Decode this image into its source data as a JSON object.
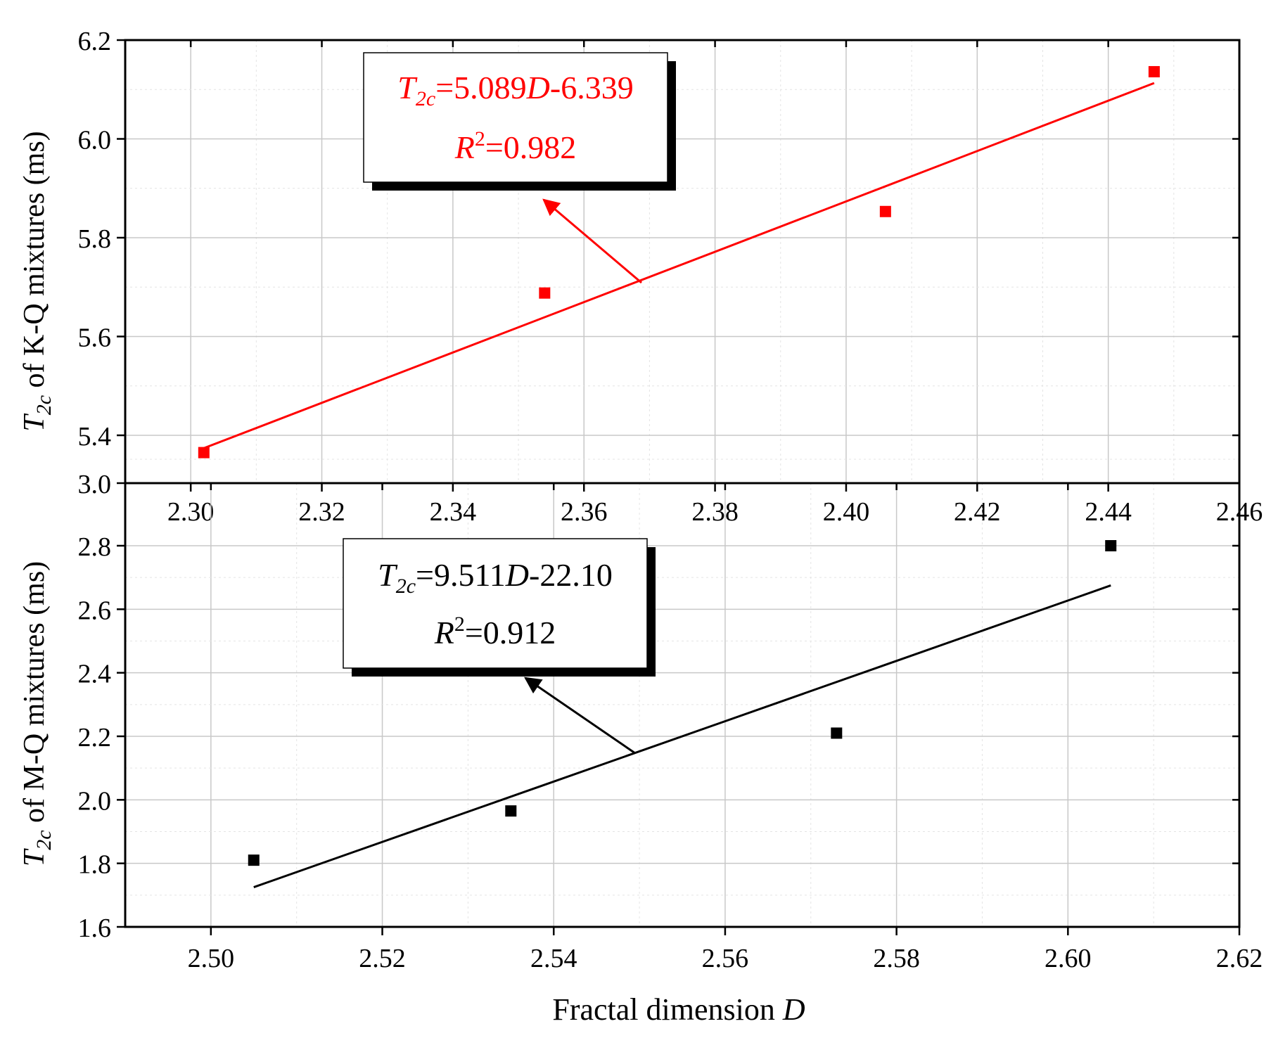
{
  "chart_data": [
    {
      "type": "scatter",
      "panel": "top",
      "ylabel": {
        "sym": "T",
        "sub": "2c",
        "rest": " of K-Q mixtures (ms)"
      },
      "xlim": [
        2.29,
        2.46
      ],
      "ylim": [
        5.3,
        6.2
      ],
      "y_axis_break": {
        "display_bottom_label": "3.0"
      },
      "xticks": [
        "2.30",
        "2.32",
        "2.34",
        "2.36",
        "2.38",
        "2.40",
        "2.42",
        "2.44",
        "2.46"
      ],
      "yticks": [
        "5.4",
        "5.6",
        "5.8",
        "6.0",
        "6.2"
      ],
      "grid": true,
      "color": "#ff0000",
      "points": [
        {
          "x": 2.302,
          "y": 5.365
        },
        {
          "x": 2.354,
          "y": 5.688
        },
        {
          "x": 2.406,
          "y": 5.853
        },
        {
          "x": 2.447,
          "y": 6.136
        }
      ],
      "fit": {
        "x": [
          2.302,
          2.447
        ],
        "y": [
          5.374,
          6.113
        ]
      },
      "annotation": {
        "eq_sym": "T",
        "eq_sub": "2c",
        "eq_a": "=5.089",
        "eq_var": "D",
        "eq_b": "-6.339",
        "r2_sym": "R",
        "r2_sup": "2",
        "r2_val": "=0.982"
      }
    },
    {
      "type": "scatter",
      "panel": "bottom",
      "ylabel": {
        "sym": "T",
        "sub": "2c",
        "rest": " of M-Q mixtures (ms)"
      },
      "xlabel": {
        "text": "Fractal dimension ",
        "var": "D"
      },
      "xlim": [
        2.49,
        2.62
      ],
      "ylim": [
        1.6,
        2.95
      ],
      "xticks": [
        "2.50",
        "2.52",
        "2.54",
        "2.56",
        "2.58",
        "2.60",
        "2.62"
      ],
      "yticks": [
        "1.6",
        "1.8",
        "2.0",
        "2.2",
        "2.4",
        "2.6",
        "2.8"
      ],
      "grid": true,
      "color": "#000000",
      "points": [
        {
          "x": 2.505,
          "y": 1.81
        },
        {
          "x": 2.535,
          "y": 1.965
        },
        {
          "x": 2.573,
          "y": 2.21
        },
        {
          "x": 2.605,
          "y": 2.8
        }
      ],
      "fit": {
        "x": [
          2.505,
          2.605
        ],
        "y": [
          1.725,
          2.675
        ]
      },
      "annotation": {
        "eq_sym": "T",
        "eq_sub": "2c",
        "eq_a": "=9.511",
        "eq_var": "D",
        "eq_b": "-22.10",
        "r2_sym": "R",
        "r2_sup": "2",
        "r2_val": "=0.912"
      }
    }
  ]
}
